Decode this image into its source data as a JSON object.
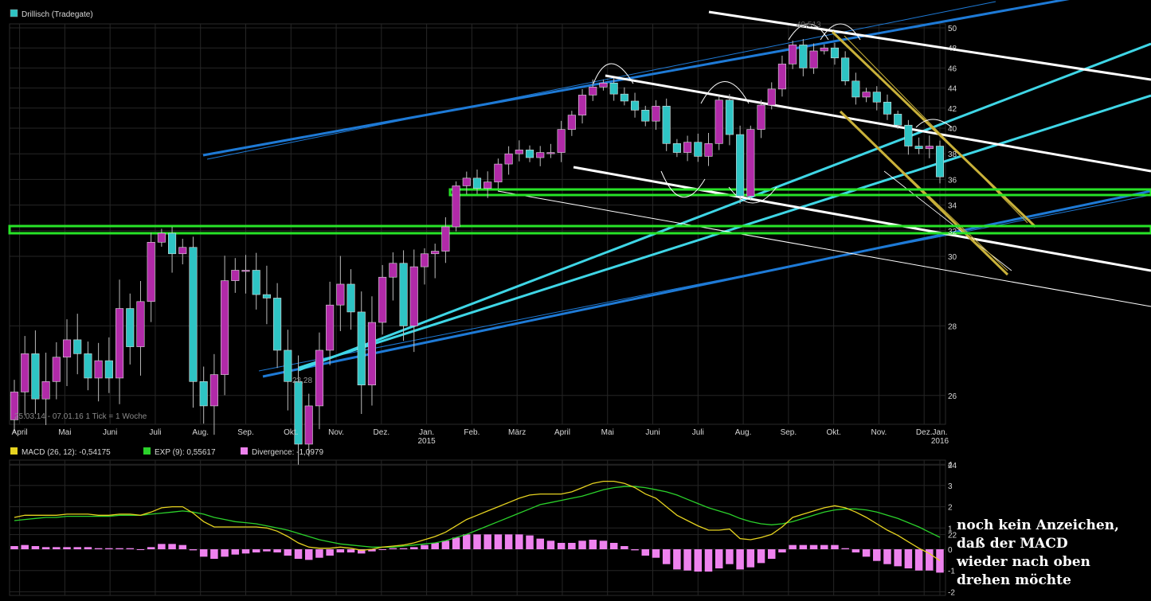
{
  "chart_data": [
    {
      "type": "candlestick",
      "title": "Drillisch (Tradegate)",
      "series_color": "#2ec4c4",
      "info": "25.03.14 - 07.01.16   1 Tick = 1 Woche",
      "y_ticks": [
        "22",
        "24",
        "26",
        "28",
        "30",
        "32",
        "34",
        "36",
        "38",
        "40",
        "42",
        "44",
        "46",
        "48",
        "50"
      ],
      "ylim": [
        21,
        51
      ],
      "x_month_labels": [
        {
          "label": "April",
          "year": ""
        },
        {
          "label": "Mai",
          "year": ""
        },
        {
          "label": "Juni",
          "year": ""
        },
        {
          "label": "Juli",
          "year": ""
        },
        {
          "label": "Aug.",
          "year": ""
        },
        {
          "label": "Sep.",
          "year": ""
        },
        {
          "label": "Okt.",
          "year": ""
        },
        {
          "label": "Nov.",
          "year": ""
        },
        {
          "label": "Dez.",
          "year": ""
        },
        {
          "label": "Jan.",
          "year": "2015"
        },
        {
          "label": "Feb.",
          "year": ""
        },
        {
          "label": "März",
          "year": ""
        },
        {
          "label": "April",
          "year": ""
        },
        {
          "label": "Mai",
          "year": ""
        },
        {
          "label": "Juni",
          "year": ""
        },
        {
          "label": "Juli",
          "year": ""
        },
        {
          "label": "Aug.",
          "year": ""
        },
        {
          "label": "Sep.",
          "year": ""
        },
        {
          "label": "Okt.",
          "year": ""
        },
        {
          "label": "Nov.",
          "year": ""
        },
        {
          "label": "Dez.",
          "year": ""
        },
        {
          "label": "Jan.",
          "year": "2016"
        }
      ],
      "annotations": [
        "23,28",
        "49,513"
      ],
      "close": [
        26.1,
        27.2,
        25.9,
        26.4,
        27.1,
        27.6,
        27.2,
        26.5,
        27.0,
        26.5,
        28.5,
        27.4,
        28.7,
        31.1,
        31.8,
        30.2,
        30.7,
        26.4,
        25.7,
        26.6,
        29.3,
        29.6,
        29.6,
        28.9,
        28.8,
        27.3,
        26.4,
        24.6,
        25.7,
        27.3,
        28.6,
        29.2,
        28.4,
        26.3,
        28.1,
        29.4,
        29.8,
        28.0,
        29.7,
        30.2,
        30.4,
        32.3,
        35.5,
        36.1,
        35.3,
        35.8,
        37.2,
        38.0,
        38.3,
        37.7,
        38.1,
        38.1,
        39.9,
        41.3,
        43.3,
        44.1,
        44.5,
        43.4,
        42.7,
        41.8,
        40.7,
        42.2,
        38.8,
        38.1,
        38.9,
        37.8,
        38.8,
        42.8,
        39.5,
        34.7,
        39.9,
        42.3,
        43.9,
        46.4,
        48.3,
        46.0,
        47.7,
        48.0,
        47.0,
        44.7,
        43.1,
        43.6,
        42.6,
        41.4,
        40.3,
        38.6,
        38.4,
        38.6,
        36.2
      ]
    },
    {
      "type": "macd",
      "legend": [
        {
          "label": "MACD (26, 12): -0,54175",
          "color": "#e6d320"
        },
        {
          "label": "EXP (9): 0,55617",
          "color": "#2bd12b"
        },
        {
          "label": "Divergence: -1,0979",
          "color": "#ee82ee"
        }
      ],
      "y_ticks": [
        "4",
        "3",
        "2",
        "1",
        "0",
        "-1",
        "-2"
      ],
      "ylim": [
        -2,
        4
      ],
      "macd": [
        1.5,
        1.6,
        1.6,
        1.6,
        1.6,
        1.65,
        1.65,
        1.65,
        1.6,
        1.6,
        1.65,
        1.65,
        1.6,
        1.75,
        1.95,
        2.0,
        2.0,
        1.7,
        1.3,
        1.05,
        1.05,
        1.05,
        1.05,
        1.05,
        1.0,
        0.85,
        0.6,
        0.3,
        0.1,
        0.05,
        0.05,
        0.1,
        0.05,
        -0.05,
        0.0,
        0.1,
        0.15,
        0.2,
        0.3,
        0.45,
        0.6,
        0.8,
        1.1,
        1.4,
        1.6,
        1.8,
        2.0,
        2.2,
        2.4,
        2.55,
        2.6,
        2.6,
        2.6,
        2.7,
        2.9,
        3.1,
        3.2,
        3.2,
        3.1,
        2.9,
        2.6,
        2.4,
        2.0,
        1.6,
        1.35,
        1.1,
        0.9,
        0.9,
        0.95,
        0.5,
        0.45,
        0.55,
        0.7,
        1.05,
        1.5,
        1.65,
        1.8,
        1.95,
        2.05,
        1.95,
        1.75,
        1.5,
        1.2,
        0.9,
        0.65,
        0.35,
        0.05,
        -0.2,
        -0.54
      ],
      "signal": [
        1.35,
        1.4,
        1.45,
        1.5,
        1.5,
        1.55,
        1.55,
        1.55,
        1.55,
        1.55,
        1.6,
        1.6,
        1.6,
        1.65,
        1.7,
        1.75,
        1.8,
        1.75,
        1.65,
        1.5,
        1.4,
        1.3,
        1.25,
        1.2,
        1.1,
        1.0,
        0.9,
        0.75,
        0.6,
        0.45,
        0.35,
        0.25,
        0.2,
        0.15,
        0.1,
        0.1,
        0.1,
        0.15,
        0.2,
        0.25,
        0.3,
        0.4,
        0.55,
        0.7,
        0.9,
        1.1,
        1.3,
        1.5,
        1.7,
        1.9,
        2.1,
        2.2,
        2.3,
        2.4,
        2.5,
        2.65,
        2.8,
        2.9,
        2.95,
        2.95,
        2.9,
        2.8,
        2.7,
        2.55,
        2.35,
        2.15,
        1.95,
        1.8,
        1.65,
        1.45,
        1.3,
        1.2,
        1.15,
        1.2,
        1.3,
        1.45,
        1.6,
        1.75,
        1.85,
        1.9,
        1.9,
        1.85,
        1.75,
        1.6,
        1.45,
        1.25,
        1.05,
        0.8,
        0.56
      ],
      "divergence": [
        0.15,
        0.2,
        0.15,
        0.1,
        0.1,
        0.1,
        0.1,
        0.1,
        0.05,
        0.05,
        0.05,
        0.05,
        0.0,
        0.1,
        0.25,
        0.25,
        0.2,
        -0.05,
        -0.35,
        -0.45,
        -0.35,
        -0.25,
        -0.2,
        -0.15,
        -0.1,
        -0.15,
        -0.3,
        -0.45,
        -0.5,
        -0.4,
        -0.3,
        -0.15,
        -0.15,
        -0.2,
        -0.1,
        0.0,
        0.05,
        0.05,
        0.1,
        0.2,
        0.3,
        0.4,
        0.55,
        0.7,
        0.7,
        0.7,
        0.7,
        0.7,
        0.7,
        0.65,
        0.5,
        0.4,
        0.3,
        0.3,
        0.4,
        0.45,
        0.4,
        0.3,
        0.15,
        -0.05,
        -0.3,
        -0.4,
        -0.7,
        -0.95,
        -1.0,
        -1.05,
        -1.05,
        -0.9,
        -0.7,
        -0.95,
        -0.85,
        -0.65,
        -0.45,
        -0.15,
        0.2,
        0.2,
        0.2,
        0.2,
        0.2,
        0.05,
        -0.15,
        -0.35,
        -0.55,
        -0.7,
        -0.8,
        -0.9,
        -1.0,
        -1.0,
        -1.1
      ]
    }
  ],
  "note": [
    "noch kein Anzeichen,",
    "daß der MACD",
    "wieder nach oben",
    "drehen möchte"
  ]
}
